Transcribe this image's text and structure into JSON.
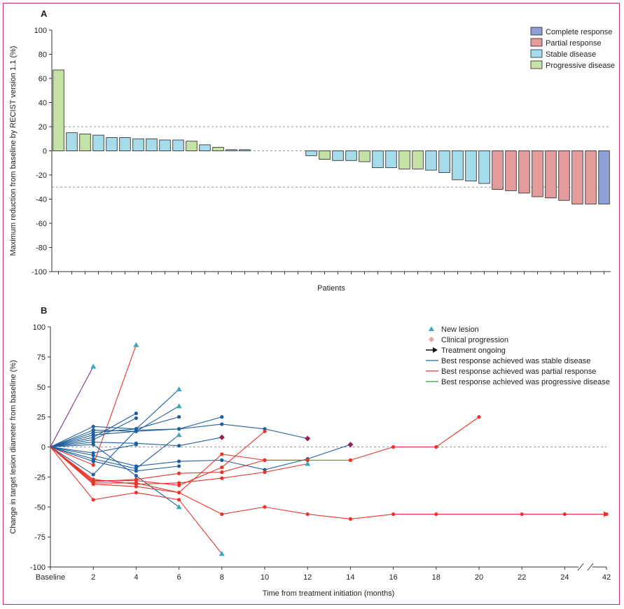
{
  "chart_data": [
    {
      "panel": "A",
      "type": "bar",
      "ylabel": "Maximum reduction from baseline by RECIST version 1.1 (%)",
      "xlabel": "Patients",
      "ylim": [
        -100,
        100
      ],
      "yticks": [
        100,
        80,
        60,
        40,
        20,
        0,
        -20,
        -40,
        -60,
        -80,
        -100
      ],
      "reference_lines": [
        20,
        -30
      ],
      "legend": {
        "position": "top-right",
        "entries": [
          {
            "label": "Complete response",
            "key": "CR"
          },
          {
            "label": "Partial response",
            "key": "PR"
          },
          {
            "label": "Stable disease",
            "key": "SD"
          },
          {
            "label": "Progressive disease",
            "key": "PD"
          }
        ]
      },
      "colors": {
        "CR": "#8e9fd6",
        "PR": "#e39b9b",
        "SD": "#a6dcea",
        "PD": "#c5e2a6"
      },
      "bars": [
        {
          "value": 67,
          "response": "PD"
        },
        {
          "value": 15,
          "response": "SD"
        },
        {
          "value": 14,
          "response": "PD"
        },
        {
          "value": 13,
          "response": "SD"
        },
        {
          "value": 11,
          "response": "SD"
        },
        {
          "value": 11,
          "response": "SD"
        },
        {
          "value": 10,
          "response": "SD"
        },
        {
          "value": 10,
          "response": "SD"
        },
        {
          "value": 9,
          "response": "SD"
        },
        {
          "value": 9,
          "response": "SD"
        },
        {
          "value": 8,
          "response": "PD"
        },
        {
          "value": 5,
          "response": "SD"
        },
        {
          "value": 3,
          "response": "PD"
        },
        {
          "value": 1,
          "response": "SD"
        },
        {
          "value": 1,
          "response": "SD"
        },
        {
          "value": 0,
          "response": null
        },
        {
          "value": 0,
          "response": null
        },
        {
          "value": 0,
          "response": null
        },
        {
          "value": 0,
          "response": null
        },
        {
          "value": -4,
          "response": "SD"
        },
        {
          "value": -7,
          "response": "PD"
        },
        {
          "value": -8,
          "response": "SD"
        },
        {
          "value": -8,
          "response": "SD"
        },
        {
          "value": -9,
          "response": "PD"
        },
        {
          "value": -14,
          "response": "SD"
        },
        {
          "value": -14,
          "response": "SD"
        },
        {
          "value": -15,
          "response": "PD"
        },
        {
          "value": -15,
          "response": "PD"
        },
        {
          "value": -16,
          "response": "SD"
        },
        {
          "value": -18,
          "response": "SD"
        },
        {
          "value": -24,
          "response": "SD"
        },
        {
          "value": -25,
          "response": "SD"
        },
        {
          "value": -27,
          "response": "SD"
        },
        {
          "value": -32,
          "response": "PR"
        },
        {
          "value": -33,
          "response": "PR"
        },
        {
          "value": -35,
          "response": "PR"
        },
        {
          "value": -38,
          "response": "PR"
        },
        {
          "value": -39,
          "response": "PR"
        },
        {
          "value": -41,
          "response": "PR"
        },
        {
          "value": -44,
          "response": "PR"
        },
        {
          "value": -44,
          "response": "PR"
        },
        {
          "value": -44,
          "response": "CR"
        }
      ]
    },
    {
      "panel": "B",
      "type": "line",
      "ylabel": "Change in target lesion diameter from baseline (%)",
      "xlabel": "Time from treatment initiation (months)",
      "ylim": [
        -100,
        100
      ],
      "yticks": [
        100,
        75,
        50,
        25,
        0,
        -25,
        -50,
        -75,
        -100
      ],
      "xticks": [
        "Baseline",
        "2",
        "4",
        "6",
        "8",
        "10",
        "12",
        "14",
        "16",
        "18",
        "20",
        "22",
        "24",
        "42"
      ],
      "reference_lines": [
        0
      ],
      "legend": {
        "position": "top-right",
        "entries": [
          {
            "label": "New lesion",
            "key": "newlesion"
          },
          {
            "label": "Clinical progression",
            "key": "clinical"
          },
          {
            "label": "Treatment ongoing",
            "key": "ongoing"
          },
          {
            "label": "Best response achieved was stable disease",
            "key": "SD"
          },
          {
            "label": "Best response achieved was partial response",
            "key": "PR"
          },
          {
            "label": "Best response achieved was progressive disease",
            "key": "PD"
          }
        ]
      },
      "colors": {
        "SD": "#1f5fa0",
        "PR": "#e8352b",
        "PD": "#3f9a3f",
        "purple": "#7a2c8c",
        "newlesion": "#3aa7c4",
        "clinical": "#9b1f4e"
      },
      "series": [
        {
          "response": "PD",
          "color": "purple",
          "points": [
            [
              0,
              0
            ],
            [
              2,
              67
            ]
          ],
          "end": "newlesion"
        },
        {
          "response": "PR",
          "points": [
            [
              0,
              0
            ],
            [
              2,
              -15
            ],
            [
              4,
              85
            ]
          ],
          "end": "newlesion"
        },
        {
          "response": "SD",
          "points": [
            [
              0,
              0
            ],
            [
              2,
              17
            ],
            [
              4,
              15
            ],
            [
              6,
              48
            ]
          ],
          "end": "newlesion"
        },
        {
          "response": "SD",
          "points": [
            [
              0,
              0
            ],
            [
              2,
              14
            ],
            [
              4,
              13
            ],
            [
              6,
              34
            ]
          ],
          "end": "newlesion"
        },
        {
          "response": "SD",
          "points": [
            [
              0,
              0
            ],
            [
              2,
              12
            ],
            [
              4,
              15
            ],
            [
              6,
              25
            ]
          ]
        },
        {
          "response": "SD",
          "points": [
            [
              0,
              0
            ],
            [
              2,
              10
            ],
            [
              4,
              13
            ],
            [
              6,
              15
            ],
            [
              8,
              19
            ],
            [
              10,
              15
            ],
            [
              12,
              7
            ]
          ],
          "end": "clinical"
        },
        {
          "response": "SD",
          "points": [
            [
              0,
              0
            ],
            [
              2,
              8
            ],
            [
              4,
              28
            ]
          ]
        },
        {
          "response": "SD",
          "points": [
            [
              0,
              0
            ],
            [
              2,
              6
            ],
            [
              4,
              24
            ]
          ]
        },
        {
          "response": "SD",
          "points": [
            [
              0,
              0
            ],
            [
              2,
              4
            ],
            [
              4,
              3
            ],
            [
              6,
              1
            ],
            [
              8,
              8
            ]
          ],
          "end": "clinical"
        },
        {
          "response": "SD",
          "points": [
            [
              0,
              0
            ],
            [
              2,
              -7
            ],
            [
              4,
              -16
            ],
            [
              6,
              -12
            ],
            [
              8,
              -11
            ],
            [
              10,
              -19
            ],
            [
              12,
              -10
            ],
            [
              14,
              2
            ]
          ],
          "end": "clinical"
        },
        {
          "response": "SD",
          "points": [
            [
              0,
              0
            ],
            [
              2,
              -10
            ],
            [
              4,
              -18
            ],
            [
              6,
              10
            ]
          ],
          "end": "newlesion"
        },
        {
          "response": "SD",
          "points": [
            [
              0,
              0
            ],
            [
              2,
              -23
            ],
            [
              4,
              14
            ],
            [
              6,
              15
            ],
            [
              8,
              25
            ]
          ]
        },
        {
          "response": "SD",
          "points": [
            [
              0,
              0
            ],
            [
              2,
              -12
            ],
            [
              4,
              -20
            ],
            [
              6,
              -16
            ]
          ]
        },
        {
          "response": "SD",
          "points": [
            [
              0,
              0
            ],
            [
              2,
              -5
            ],
            [
              4,
              2
            ]
          ]
        },
        {
          "response": "SD",
          "points": [
            [
              0,
              0
            ],
            [
              2,
              2
            ],
            [
              4,
              -24
            ],
            [
              6,
              -50
            ]
          ],
          "end": "newlesion"
        },
        {
          "response": "PR",
          "points": [
            [
              0,
              0
            ],
            [
              2,
              -27
            ],
            [
              4,
              -31
            ],
            [
              6,
              -30
            ],
            [
              8,
              -26
            ],
            [
              10,
              -21
            ],
            [
              12,
              -14
            ]
          ],
          "end": "newlesion"
        },
        {
          "response": "PR",
          "points": [
            [
              0,
              0
            ],
            [
              2,
              -29
            ],
            [
              4,
              -27
            ],
            [
              6,
              -22
            ],
            [
              8,
              -21
            ],
            [
              10,
              -11
            ],
            [
              12,
              -11
            ],
            [
              14,
              -11
            ],
            [
              16,
              0
            ],
            [
              18,
              0
            ],
            [
              20,
              25
            ]
          ]
        },
        {
          "response": "PR",
          "points": [
            [
              0,
              0
            ],
            [
              2,
              -30
            ],
            [
              4,
              -30
            ],
            [
              6,
              -38
            ],
            [
              8,
              -56
            ],
            [
              10,
              -50
            ],
            [
              12,
              -56
            ],
            [
              14,
              -60
            ],
            [
              16,
              -56
            ],
            [
              18,
              -56
            ],
            [
              22,
              -56
            ],
            [
              24,
              -56
            ],
            [
              42,
              -56
            ]
          ],
          "end": "ongoing"
        },
        {
          "response": "PR",
          "points": [
            [
              0,
              0
            ],
            [
              2,
              -31
            ],
            [
              4,
              -33
            ],
            [
              6,
              -38
            ],
            [
              8,
              -6
            ],
            [
              10,
              -11
            ],
            [
              12,
              -11
            ]
          ]
        },
        {
          "response": "PR",
          "points": [
            [
              0,
              0
            ],
            [
              2,
              -44
            ],
            [
              4,
              -38
            ],
            [
              6,
              -44
            ],
            [
              8,
              -89
            ]
          ],
          "end": "newlesion"
        },
        {
          "response": "PR",
          "points": [
            [
              0,
              0
            ],
            [
              2,
              -28
            ],
            [
              4,
              -28
            ],
            [
              6,
              -32
            ],
            [
              8,
              -17
            ],
            [
              10,
              13
            ]
          ]
        }
      ]
    }
  ],
  "labels": {
    "panel_a": "A",
    "panel_b": "B"
  }
}
